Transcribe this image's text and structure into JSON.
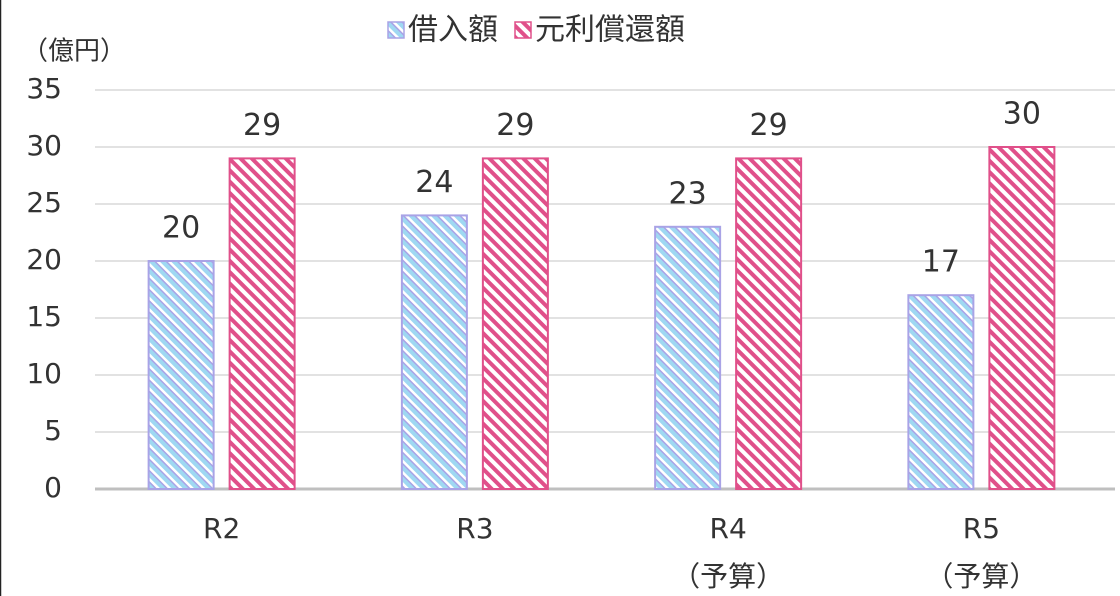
{
  "chart_data": {
    "type": "bar",
    "y_axis_label": "（億円）",
    "categories": [
      [
        "R2"
      ],
      [
        "R3"
      ],
      [
        "R4",
        "（予算）"
      ],
      [
        "R5",
        "（予算）"
      ]
    ],
    "series": [
      {
        "name": "借入額",
        "color": "#a9a3e6",
        "values": [
          20,
          24,
          23,
          17
        ]
      },
      {
        "name": "元利償還額",
        "color": "#e0508a",
        "values": [
          29,
          29,
          29,
          30
        ]
      }
    ],
    "ylim": [
      0,
      35
    ],
    "yticks": [
      0,
      5,
      10,
      15,
      20,
      25,
      30,
      35
    ],
    "grid": true,
    "legend": "top"
  }
}
